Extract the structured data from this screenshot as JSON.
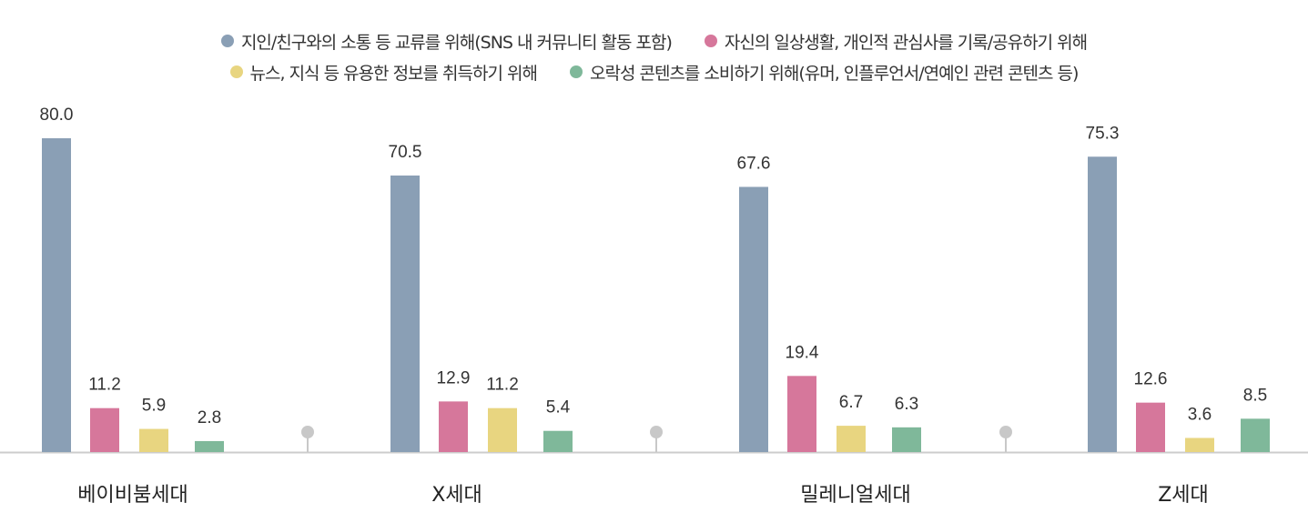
{
  "chart_data": {
    "type": "bar",
    "categories": [
      "베이비붐세대",
      "X세대",
      "밀레니얼세대",
      "Z세대"
    ],
    "series": [
      {
        "name": "지인/친구와의 소통 등 교류를 위해(SNS 내 커뮤니티 활동 포함)",
        "color": "#8a9fb5",
        "values": [
          80.0,
          70.5,
          67.6,
          75.3
        ]
      },
      {
        "name": "자신의 일상생활, 개인적 관심사를 기록/공유하기 위해",
        "color": "#d6779b",
        "values": [
          11.2,
          12.9,
          19.4,
          12.6
        ]
      },
      {
        "name": "뉴스, 지식 등 유용한 정보를 취득하기 위해",
        "color": "#e8d580",
        "values": [
          5.9,
          11.2,
          6.7,
          3.6
        ]
      },
      {
        "name": "오락성 콘텐츠를 소비하기 위해(유머, 인플루언서/연예인 관련 콘텐츠 등)",
        "color": "#7fb89a",
        "values": [
          2.8,
          5.4,
          6.3,
          8.5
        ]
      }
    ],
    "value_labels": [
      [
        "80.0",
        "70.5",
        "67.6",
        "75.3"
      ],
      [
        "11.2",
        "12.9",
        "19.4",
        "12.6"
      ],
      [
        "5.9",
        "11.2",
        "6.7",
        "3.6"
      ],
      [
        "2.8",
        "5.4",
        "6.3",
        "8.5"
      ]
    ],
    "ylim": [
      0,
      80
    ],
    "legend_position": "top",
    "grid": false,
    "separator_color": "#c8c8c8",
    "axis_color": "#cccccc"
  }
}
